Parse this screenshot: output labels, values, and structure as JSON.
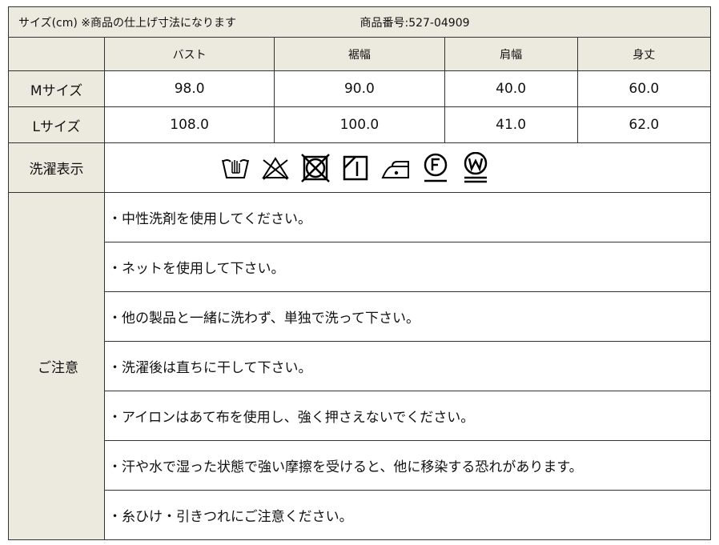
{
  "header": {
    "title": "サイズ(cm) ※商品の仕上げ寸法になります",
    "product_no": "商品番号:527-04909"
  },
  "columns": [
    "バスト",
    "裾幅",
    "肩幅",
    "身丈"
  ],
  "rows": [
    {
      "label": "Mサイズ",
      "values": [
        "98.0",
        "90.0",
        "40.0",
        "60.0"
      ]
    },
    {
      "label": "Lサイズ",
      "values": [
        "108.0",
        "100.0",
        "41.0",
        "62.0"
      ]
    }
  ],
  "care": {
    "label": "洗濯表示",
    "icons": [
      "hand-wash-icon",
      "no-bleach-icon",
      "no-tumble-dry-icon",
      "drip-dry-shade-icon",
      "iron-low-icon",
      "dry-clean-f-icon",
      "wet-clean-w-icon"
    ]
  },
  "notes": {
    "label": "ご注意",
    "items": [
      "・中性洗剤を使用してください。",
      "・ネットを使用して下さい。",
      "・他の製品と一緒に洗わず、単独で洗って下さい。",
      "・洗濯後は直ちに干して下さい。",
      "・アイロンはあて布を使用し、強く押さえないでください。",
      "・汗や水で湿った状態で強い摩擦を受けると、他に移染する恐れがあります。",
      "・糸ひけ・引きつれにご注意ください。"
    ]
  },
  "colors": {
    "header_bg": "#ECE9DE",
    "border": "#333333"
  }
}
